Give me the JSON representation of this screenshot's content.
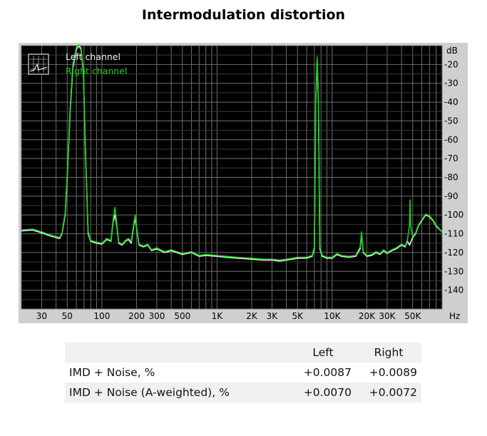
{
  "page": {
    "title": "Intermodulation distortion"
  },
  "chart_data": {
    "type": "line",
    "title": "Intermodulation distortion",
    "x_scale": "log",
    "y_unit_label": "dB",
    "x_unit_label": "Hz",
    "xlim": [
      20,
      90000
    ],
    "ylim": [
      -150,
      -10
    ],
    "x_ticks": [
      {
        "v": 30,
        "label": "30"
      },
      {
        "v": 50,
        "label": "50"
      },
      {
        "v": 100,
        "label": "100"
      },
      {
        "v": 200,
        "label": "200"
      },
      {
        "v": 300,
        "label": "300"
      },
      {
        "v": 500,
        "label": "500"
      },
      {
        "v": 1000,
        "label": "1K"
      },
      {
        "v": 2000,
        "label": "2K"
      },
      {
        "v": 3000,
        "label": "3K"
      },
      {
        "v": 5000,
        "label": "5K"
      },
      {
        "v": 10000,
        "label": "10K"
      },
      {
        "v": 20000,
        "label": "20K"
      },
      {
        "v": 30000,
        "label": "30K"
      },
      {
        "v": 50000,
        "label": "50K"
      }
    ],
    "y_ticks": [
      {
        "v": -20,
        "label": "-20"
      },
      {
        "v": -30,
        "label": "-30"
      },
      {
        "v": -40,
        "label": "-40"
      },
      {
        "v": -50,
        "label": "-50"
      },
      {
        "v": -60,
        "label": "-60"
      },
      {
        "v": -70,
        "label": "-70"
      },
      {
        "v": -80,
        "label": "-80"
      },
      {
        "v": -90,
        "label": "-90"
      },
      {
        "v": -100,
        "label": "-100"
      },
      {
        "v": -110,
        "label": "-110"
      },
      {
        "v": -120,
        "label": "-120"
      },
      {
        "v": -130,
        "label": "-130"
      },
      {
        "v": -140,
        "label": "-140"
      }
    ],
    "grid": true,
    "legend_position": "top-left",
    "background_color": "#000000",
    "series": [
      {
        "name": "Left channel",
        "color": "#f0f0f0",
        "points": [
          [
            20,
            -108.5
          ],
          [
            25,
            -108
          ],
          [
            30,
            -109.5
          ],
          [
            35,
            -111
          ],
          [
            40,
            -112
          ],
          [
            43,
            -112.5
          ],
          [
            45,
            -110
          ],
          [
            48,
            -100
          ],
          [
            50,
            -80
          ],
          [
            53,
            -45
          ],
          [
            56,
            -22
          ],
          [
            60,
            -12
          ],
          [
            63,
            -10
          ],
          [
            66,
            -12
          ],
          [
            69,
            -24
          ],
          [
            72,
            -65
          ],
          [
            76,
            -110
          ],
          [
            80,
            -114
          ],
          [
            90,
            -115
          ],
          [
            100,
            -115.5
          ],
          [
            110,
            -113
          ],
          [
            120,
            -114
          ],
          [
            125,
            -104
          ],
          [
            130,
            -100
          ],
          [
            135,
            -106
          ],
          [
            140,
            -115
          ],
          [
            150,
            -116
          ],
          [
            160,
            -114
          ],
          [
            170,
            -113
          ],
          [
            180,
            -115
          ],
          [
            190,
            -105
          ],
          [
            195,
            -102
          ],
          [
            200,
            -107
          ],
          [
            210,
            -116
          ],
          [
            230,
            -117
          ],
          [
            250,
            -116
          ],
          [
            270,
            -119
          ],
          [
            300,
            -118
          ],
          [
            350,
            -120
          ],
          [
            400,
            -119
          ],
          [
            500,
            -121
          ],
          [
            600,
            -120
          ],
          [
            700,
            -122
          ],
          [
            800,
            -121.5
          ],
          [
            1000,
            -122
          ],
          [
            1200,
            -122.5
          ],
          [
            1500,
            -123
          ],
          [
            2000,
            -123.5
          ],
          [
            2500,
            -124
          ],
          [
            3000,
            -124
          ],
          [
            3500,
            -124.5
          ],
          [
            4000,
            -124
          ],
          [
            4500,
            -123.5
          ],
          [
            5000,
            -123
          ],
          [
            6000,
            -123
          ],
          [
            6700,
            -122
          ],
          [
            7000,
            -118
          ],
          [
            7200,
            -40
          ],
          [
            7400,
            -18
          ],
          [
            7600,
            -40
          ],
          [
            7800,
            -118
          ],
          [
            8200,
            -122
          ],
          [
            9000,
            -123
          ],
          [
            10000,
            -123
          ],
          [
            11000,
            -121
          ],
          [
            12000,
            -122
          ],
          [
            14000,
            -122.5
          ],
          [
            16000,
            -122
          ],
          [
            17500,
            -118
          ],
          [
            18000,
            -110
          ],
          [
            18600,
            -120
          ],
          [
            20000,
            -122
          ],
          [
            22000,
            -121.5
          ],
          [
            24000,
            -120
          ],
          [
            26000,
            -121
          ],
          [
            28000,
            -119
          ],
          [
            30000,
            -120.5
          ],
          [
            33000,
            -119
          ],
          [
            36000,
            -118
          ],
          [
            40000,
            -116
          ],
          [
            43000,
            -117
          ],
          [
            45000,
            -114
          ],
          [
            47000,
            -116
          ],
          [
            50000,
            -112
          ],
          [
            53000,
            -110
          ],
          [
            56000,
            -106
          ],
          [
            60000,
            -103
          ],
          [
            65000,
            -100
          ],
          [
            70000,
            -101
          ],
          [
            75000,
            -103
          ],
          [
            80000,
            -106
          ],
          [
            90000,
            -109
          ]
        ]
      },
      {
        "name": "Right channel",
        "color": "#19d219",
        "points": [
          [
            20,
            -108
          ],
          [
            25,
            -107.5
          ],
          [
            30,
            -109
          ],
          [
            35,
            -110.5
          ],
          [
            40,
            -111.5
          ],
          [
            43,
            -112
          ],
          [
            45,
            -109.5
          ],
          [
            48,
            -99
          ],
          [
            50,
            -78
          ],
          [
            53,
            -43
          ],
          [
            56,
            -20
          ],
          [
            60,
            -11
          ],
          [
            63,
            -9.5
          ],
          [
            66,
            -11
          ],
          [
            69,
            -23
          ],
          [
            72,
            -64
          ],
          [
            76,
            -109
          ],
          [
            80,
            -113.5
          ],
          [
            90,
            -114.5
          ],
          [
            100,
            -115
          ],
          [
            110,
            -112.5
          ],
          [
            120,
            -113.5
          ],
          [
            125,
            -103
          ],
          [
            130,
            -96
          ],
          [
            135,
            -105
          ],
          [
            140,
            -114.5
          ],
          [
            150,
            -115.5
          ],
          [
            160,
            -113.5
          ],
          [
            170,
            -112.5
          ],
          [
            180,
            -114
          ],
          [
            190,
            -104
          ],
          [
            195,
            -100
          ],
          [
            200,
            -106
          ],
          [
            210,
            -115.5
          ],
          [
            230,
            -116.5
          ],
          [
            250,
            -115.5
          ],
          [
            270,
            -118.5
          ],
          [
            300,
            -117.5
          ],
          [
            350,
            -119.5
          ],
          [
            400,
            -118.5
          ],
          [
            500,
            -120.5
          ],
          [
            600,
            -119.5
          ],
          [
            700,
            -121.5
          ],
          [
            800,
            -121
          ],
          [
            1000,
            -121.5
          ],
          [
            1200,
            -122
          ],
          [
            1500,
            -122.5
          ],
          [
            2000,
            -123
          ],
          [
            2500,
            -123.5
          ],
          [
            3000,
            -123.5
          ],
          [
            3500,
            -124
          ],
          [
            4000,
            -123.5
          ],
          [
            4500,
            -123
          ],
          [
            5000,
            -122.5
          ],
          [
            6000,
            -122.5
          ],
          [
            6700,
            -121.5
          ],
          [
            7000,
            -117
          ],
          [
            7200,
            -38
          ],
          [
            7400,
            -16
          ],
          [
            7600,
            -38
          ],
          [
            7800,
            -117
          ],
          [
            8200,
            -121.5
          ],
          [
            9000,
            -122.5
          ],
          [
            10000,
            -122.5
          ],
          [
            11000,
            -120.5
          ],
          [
            12000,
            -121.5
          ],
          [
            14000,
            -122
          ],
          [
            16000,
            -121.5
          ],
          [
            17500,
            -117
          ],
          [
            18000,
            -109
          ],
          [
            18600,
            -119.5
          ],
          [
            20000,
            -121.5
          ],
          [
            22000,
            -121
          ],
          [
            24000,
            -119.5
          ],
          [
            26000,
            -120.5
          ],
          [
            28000,
            -118.5
          ],
          [
            30000,
            -120
          ],
          [
            33000,
            -118.5
          ],
          [
            36000,
            -117.5
          ],
          [
            40000,
            -115.5
          ],
          [
            43000,
            -116.5
          ],
          [
            45000,
            -113.5
          ],
          [
            47000,
            -105
          ],
          [
            47500,
            -92
          ],
          [
            48000,
            -106
          ],
          [
            50000,
            -111.5
          ],
          [
            53000,
            -109.5
          ],
          [
            56000,
            -105.5
          ],
          [
            60000,
            -102.5
          ],
          [
            65000,
            -99.5
          ],
          [
            70000,
            -100.5
          ],
          [
            75000,
            -102.5
          ],
          [
            80000,
            -105.5
          ],
          [
            90000,
            -109
          ]
        ]
      }
    ]
  },
  "results_table": {
    "header": {
      "col_left": "Left",
      "col_right": "Right"
    },
    "rows": [
      {
        "label": "IMD + Noise, %",
        "left": "+0.0087",
        "right": "+0.0089"
      },
      {
        "label": "IMD + Noise (A-weighted), %",
        "left": "+0.0070",
        "right": "+0.0072"
      }
    ]
  }
}
